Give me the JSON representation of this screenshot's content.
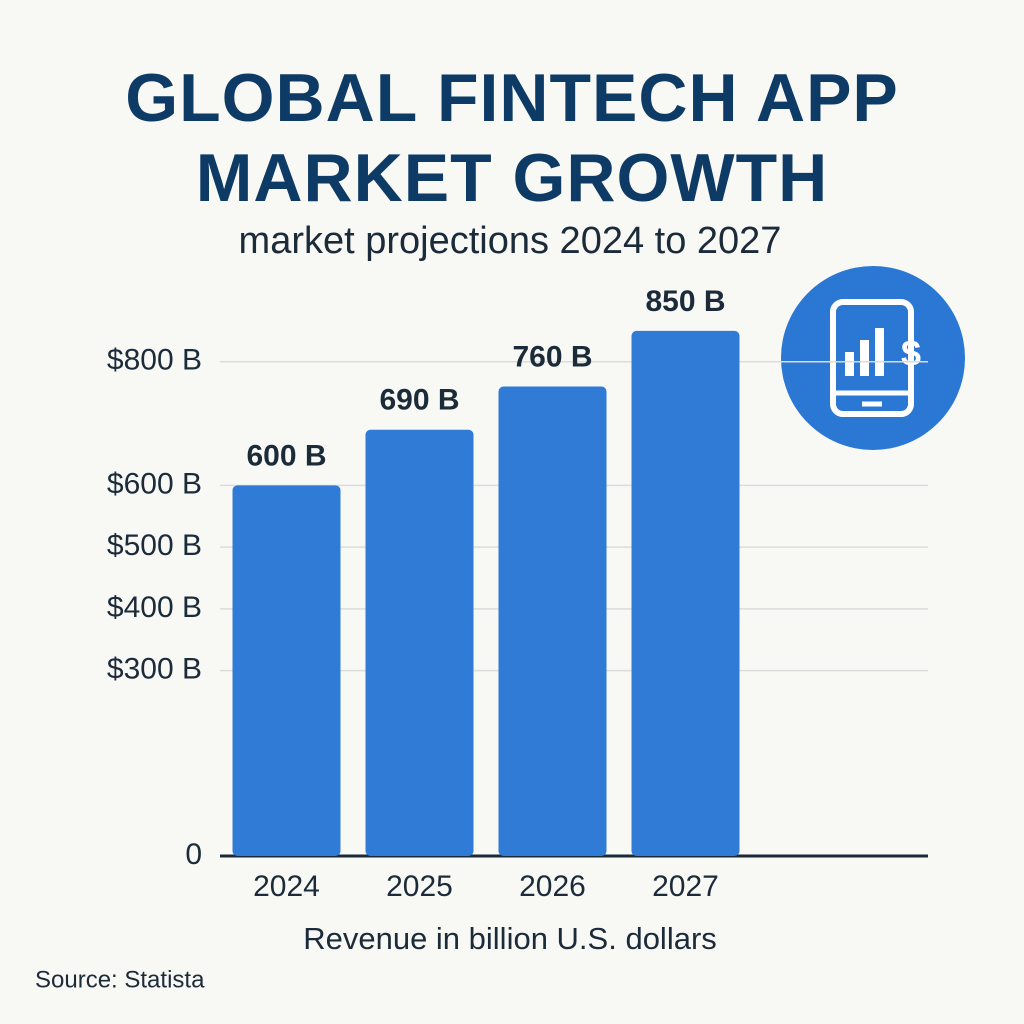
{
  "chart_data": {
    "type": "bar",
    "title": "GLOBAL FINTECH APP MARKET GROWTH",
    "subtitle": "market projections 2024 to 2027",
    "categories": [
      "2024",
      "2025",
      "2026",
      "2027"
    ],
    "values": [
      600,
      690,
      760,
      850
    ],
    "value_labels": [
      "600 B",
      "690 B",
      "760 B",
      "850 B"
    ],
    "color": "#2f7bd6",
    "ylim": [
      0,
      900
    ],
    "yticks": [
      0,
      {
        "value": 300,
        "label": "$300 B"
      },
      {
        "value": 400,
        "label": "$400 B"
      },
      {
        "value": 500,
        "label": "$500 B"
      },
      {
        "value": 600,
        "label": "$600 B"
      },
      {
        "value": 800,
        "label": "$800 B"
      }
    ],
    "grid": true,
    "xlabel": "Revenue in billion U.S. dollars",
    "source": "Source: Statista"
  }
}
